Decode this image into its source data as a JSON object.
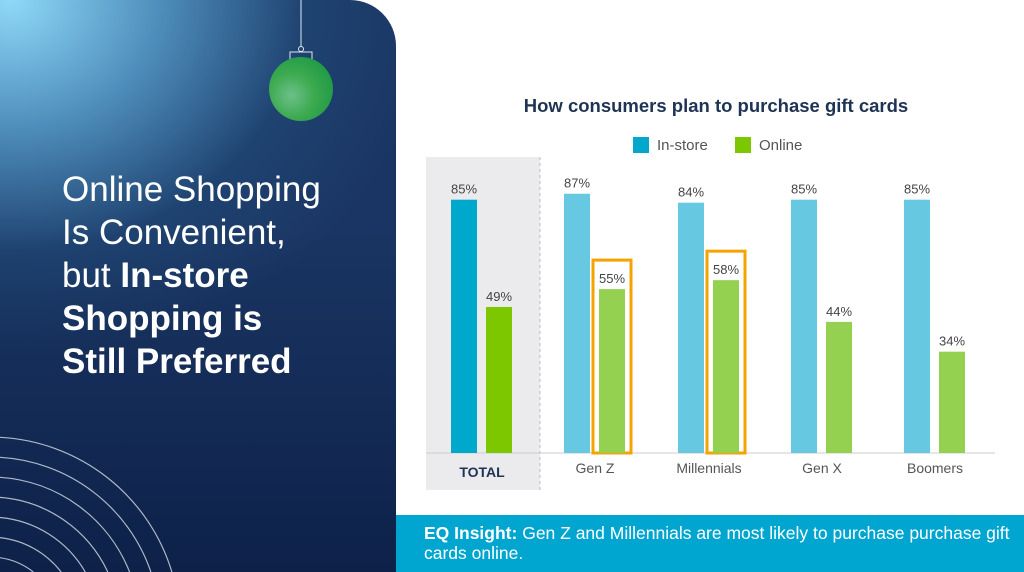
{
  "slide": {
    "headline_regular": "Online Shopping Is Convenient, but",
    "headline_line1": "Online Shopping",
    "headline_line2": "Is Convenient,",
    "headline_line3_regular": "but",
    "headline_line3_bold": "In-store",
    "headline_line4_bold": "Shopping is",
    "headline_line5_bold": "Still Preferred"
  },
  "banner": {
    "label": "EQ Insight:",
    "text": "Gen Z and Millennials are most likely to purchase purchase gift cards online."
  },
  "colors": {
    "instore_total": "#00a8cc",
    "online_total": "#7dc700",
    "instore": "#66c9e1",
    "online": "#94d150",
    "highlight": "#f5a300",
    "banner": "#01a6d0"
  },
  "chart_data": {
    "type": "bar",
    "title": "How consumers plan to purchase gift cards",
    "categories": [
      "TOTAL",
      "Gen Z",
      "Millennials",
      "Gen X",
      "Boomers"
    ],
    "series": [
      {
        "name": "In-store",
        "values": [
          85,
          87,
          84,
          85,
          85
        ]
      },
      {
        "name": "Online",
        "values": [
          49,
          55,
          58,
          44,
          34
        ]
      }
    ],
    "value_labels": {
      "In-store": [
        "85%",
        "87%",
        "84%",
        "85%",
        "85%"
      ],
      "Online": [
        "49%",
        "55%",
        "58%",
        "44%",
        "34%"
      ]
    },
    "highlighted": [
      {
        "series": "Online",
        "category": "Gen Z"
      },
      {
        "series": "Online",
        "category": "Millennials"
      }
    ],
    "ylim": [
      0,
      100
    ],
    "xlabel": "",
    "ylabel": "",
    "grid": false,
    "legend": "top-center"
  }
}
